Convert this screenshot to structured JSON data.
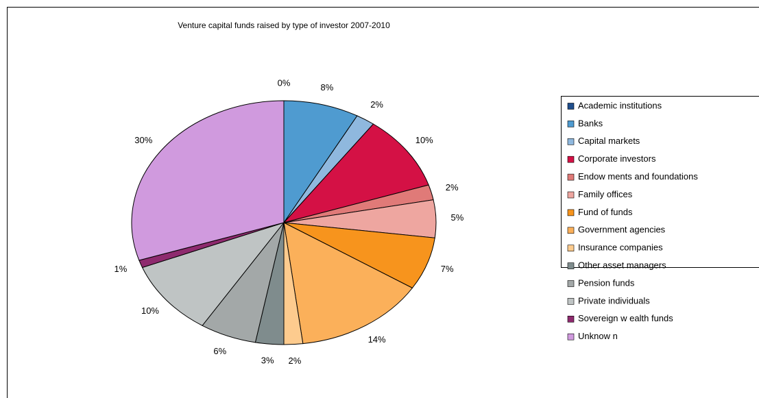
{
  "chart_data": {
    "type": "pie",
    "title": "Venture capital funds raised by type of investor 2007-2010",
    "categories": [
      "Academic institutions",
      "Banks",
      "Capital markets",
      "Corporate investors",
      "Endow ments and foundations",
      "Family offices",
      "Fund of funds",
      "Government agencies",
      "Insurance companies",
      "Other asset managers",
      "Pension funds",
      "Private individuals",
      "Sovereign w ealth funds",
      "Unknow n"
    ],
    "values": [
      0,
      8,
      2,
      10,
      2,
      5,
      7,
      14,
      2,
      3,
      6,
      10,
      1,
      30
    ],
    "value_labels": [
      "0%",
      "8%",
      "2%",
      "10%",
      "2%",
      "5%",
      "7%",
      "14%",
      "2%",
      "3%",
      "6%",
      "10%",
      "1%",
      "30%"
    ],
    "colors": [
      "#1f4e8c",
      "#4f9bd0",
      "#8fb8de",
      "#d41145",
      "#e07a78",
      "#eea6a0",
      "#f7941d",
      "#fbb05a",
      "#fdcb8e",
      "#7f8c8d",
      "#a3a8a8",
      "#bfc4c4",
      "#8e2a6e",
      "#d09ade"
    ],
    "legend": "right"
  }
}
